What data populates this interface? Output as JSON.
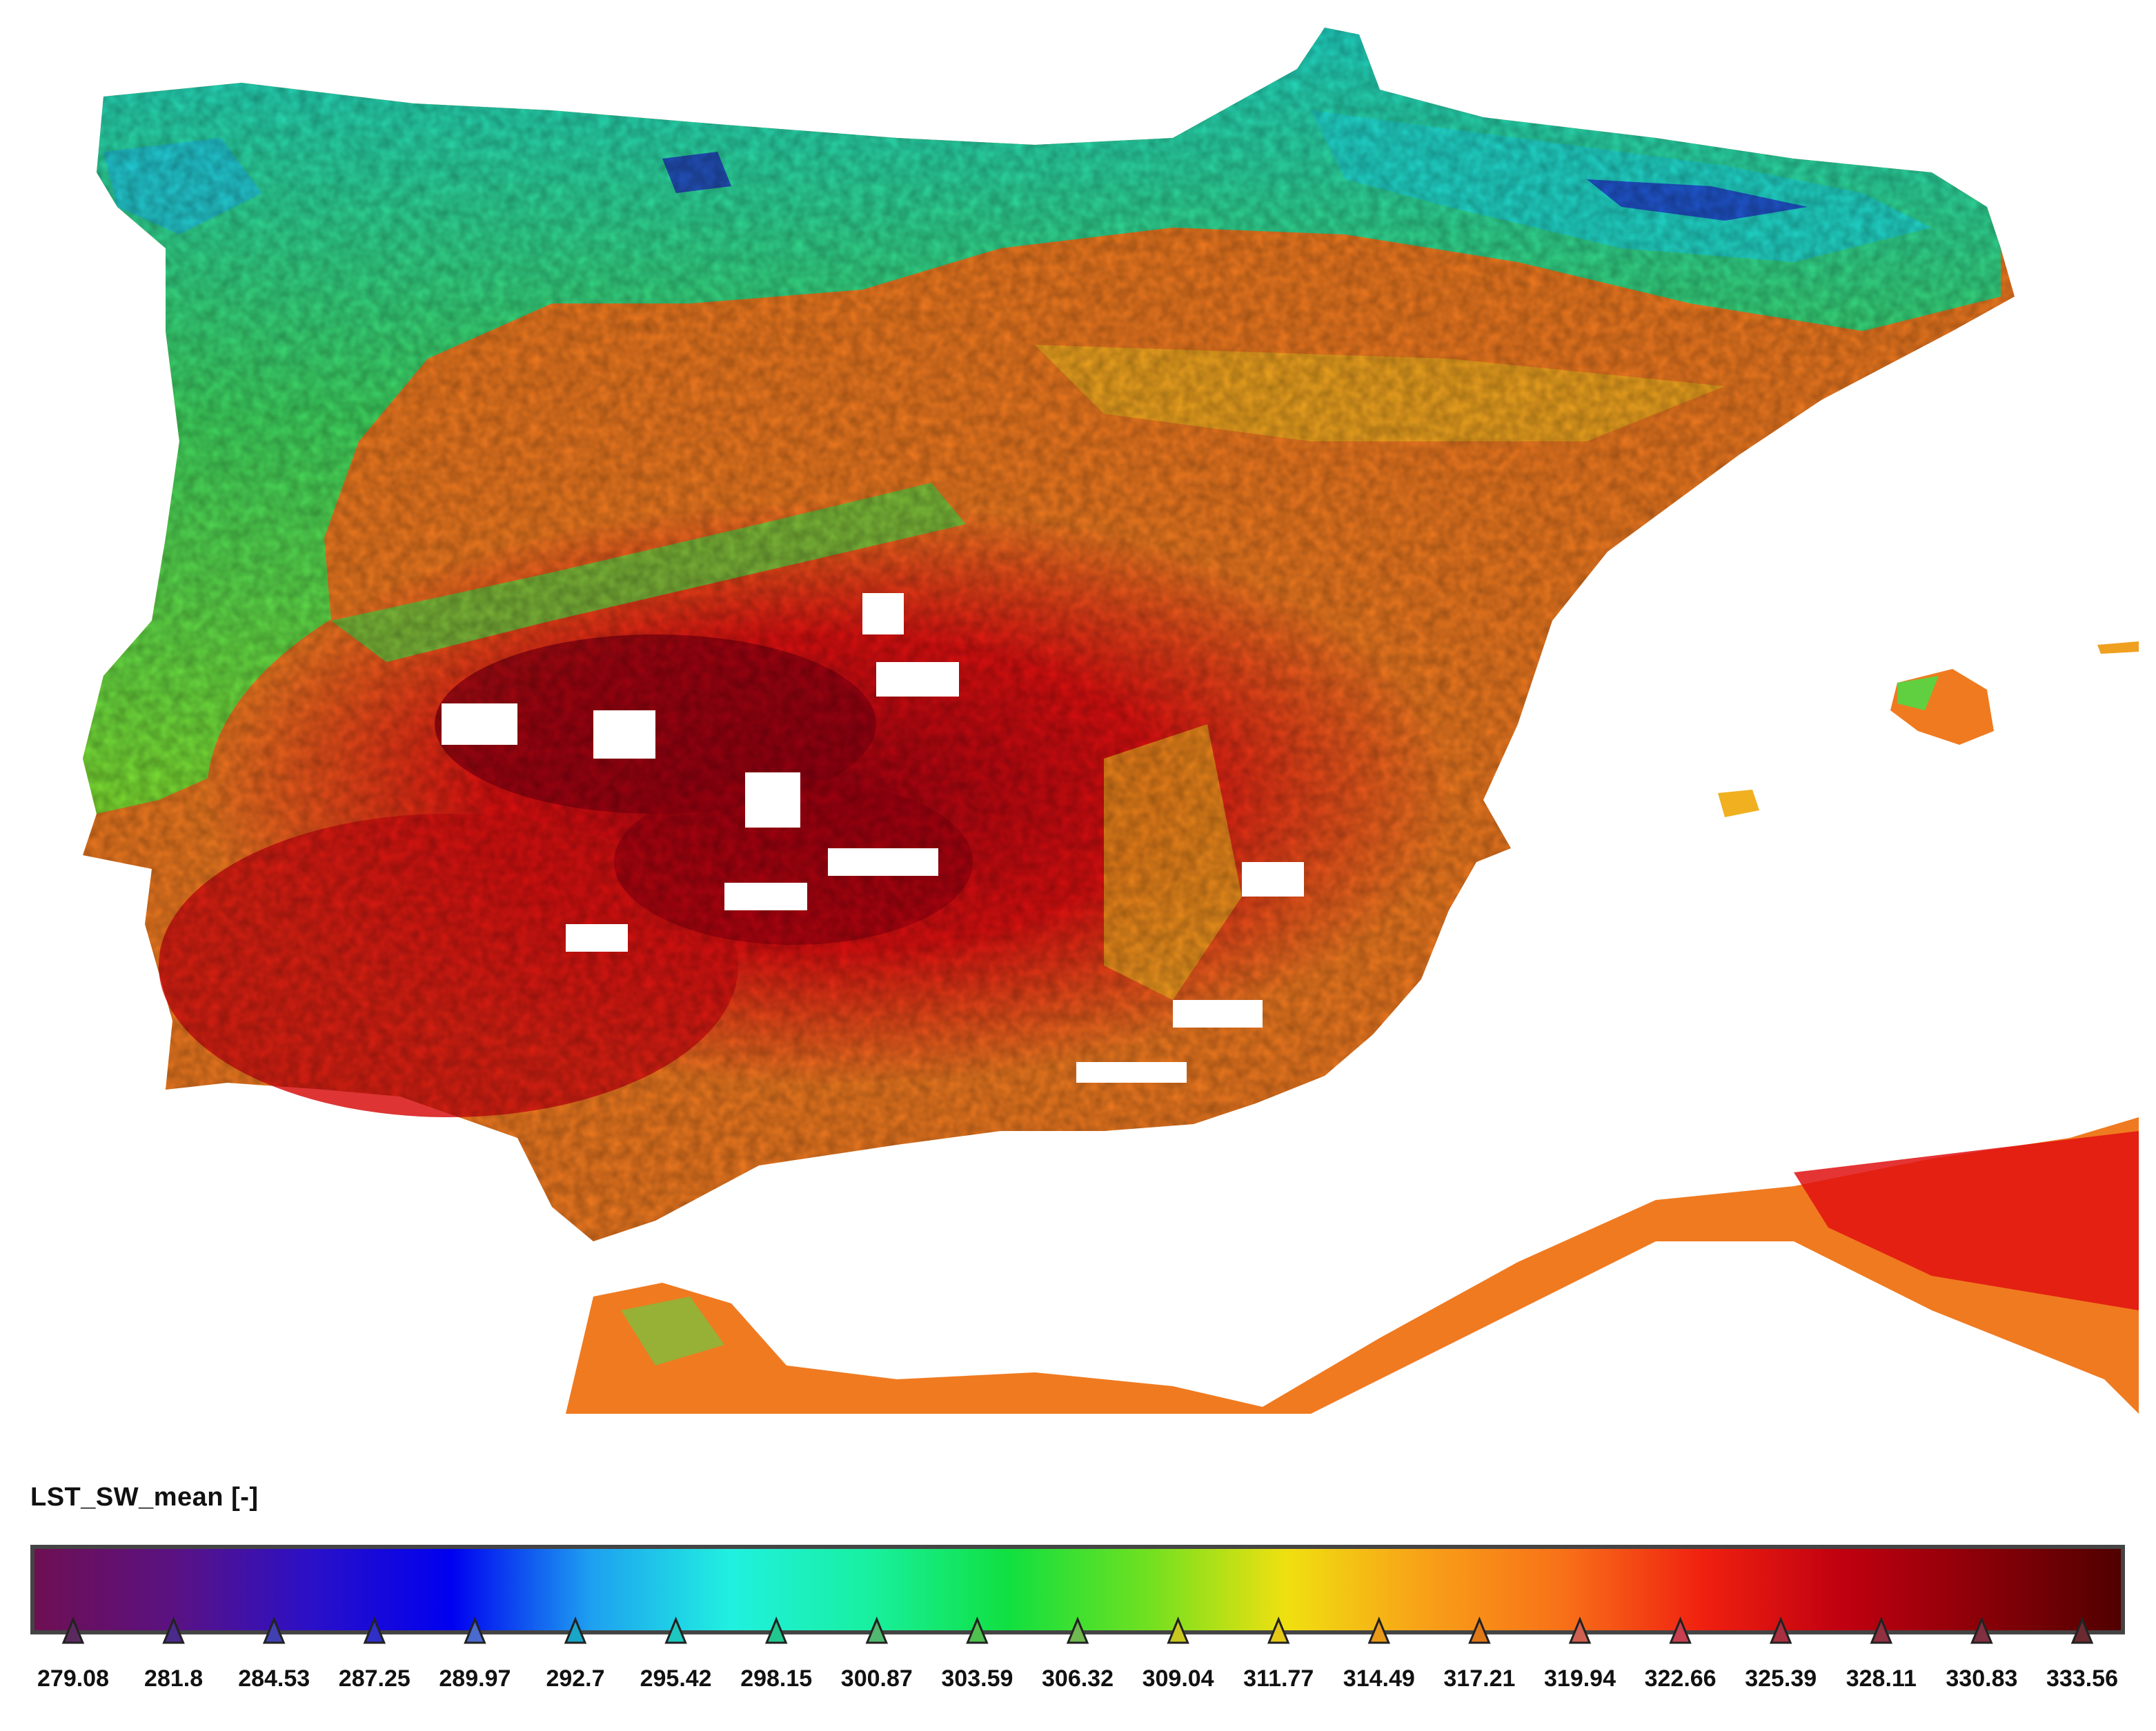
{
  "legend": {
    "title": "LST_SW_mean [-]",
    "tick_values": [
      "279.08",
      "281.8",
      "284.53",
      "287.25",
      "289.97",
      "292.7",
      "295.42",
      "298.15",
      "300.87",
      "303.59",
      "306.32",
      "309.04",
      "311.77",
      "314.49",
      "317.21",
      "319.94",
      "322.66",
      "325.39",
      "328.11",
      "330.83",
      "333.56"
    ],
    "marker_colors": [
      "#5a2a5e",
      "#4a2a8a",
      "#4040b0",
      "#3030c8",
      "#4a6ad0",
      "#1aa6c8",
      "#1ec8c0",
      "#20c890",
      "#50b870",
      "#50c050",
      "#70b850",
      "#c8c820",
      "#e6c818",
      "#e89a18",
      "#e07818",
      "#d06050",
      "#c84050",
      "#a83040",
      "#903040",
      "#803040",
      "#6a2a30"
    ],
    "gradient_stops": [
      "#6e0f52",
      "#5a1282",
      "#2a10c8",
      "#0000f0",
      "#1ea0f0",
      "#20f0e0",
      "#18f0a0",
      "#10e040",
      "#70e020",
      "#f0e010",
      "#f8a018",
      "#f87018",
      "#f02010",
      "#c00010",
      "#8a0008",
      "#500000"
    ]
  },
  "map": {
    "palette": {
      "cold": "#2020d0",
      "cool": "#20d8d8",
      "mild": "#30d860",
      "warm": "#f0e020",
      "hot": "#f08020",
      "very_hot": "#e81010",
      "extreme": "#900010",
      "no_data": "#ffffff"
    }
  }
}
